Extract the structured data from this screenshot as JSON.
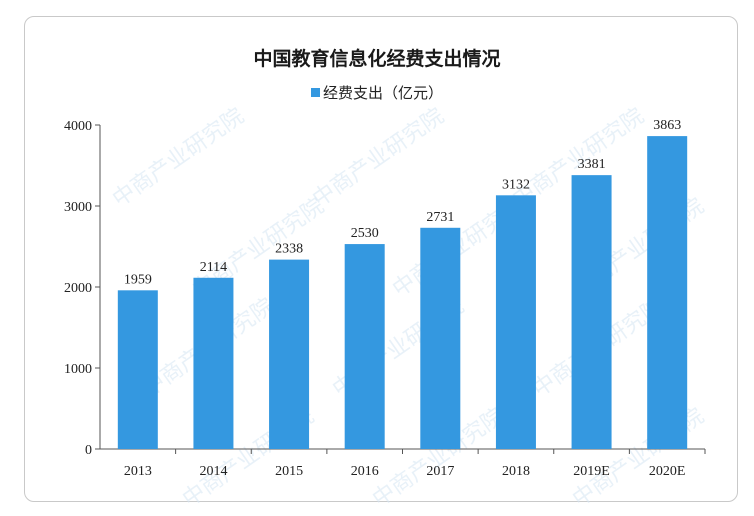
{
  "chart_data": {
    "type": "bar",
    "title": "中国教育信息化经费支出情况",
    "categories": [
      "2013",
      "2014",
      "2015",
      "2016",
      "2017",
      "2018",
      "2019E",
      "2020E"
    ],
    "series": [
      {
        "name": "经费支出（亿元）",
        "values": [
          1959,
          2114,
          2338,
          2530,
          2731,
          3132,
          3381,
          3863
        ]
      }
    ],
    "ylim": [
      0,
      4000
    ],
    "yticks": [
      "0",
      "1000",
      "2000",
      "3000",
      "4000"
    ],
    "grid": false,
    "legend_position": "top-center",
    "bar_color": "#3498e0",
    "data_labels": true
  },
  "watermark": "中商产业研究院"
}
